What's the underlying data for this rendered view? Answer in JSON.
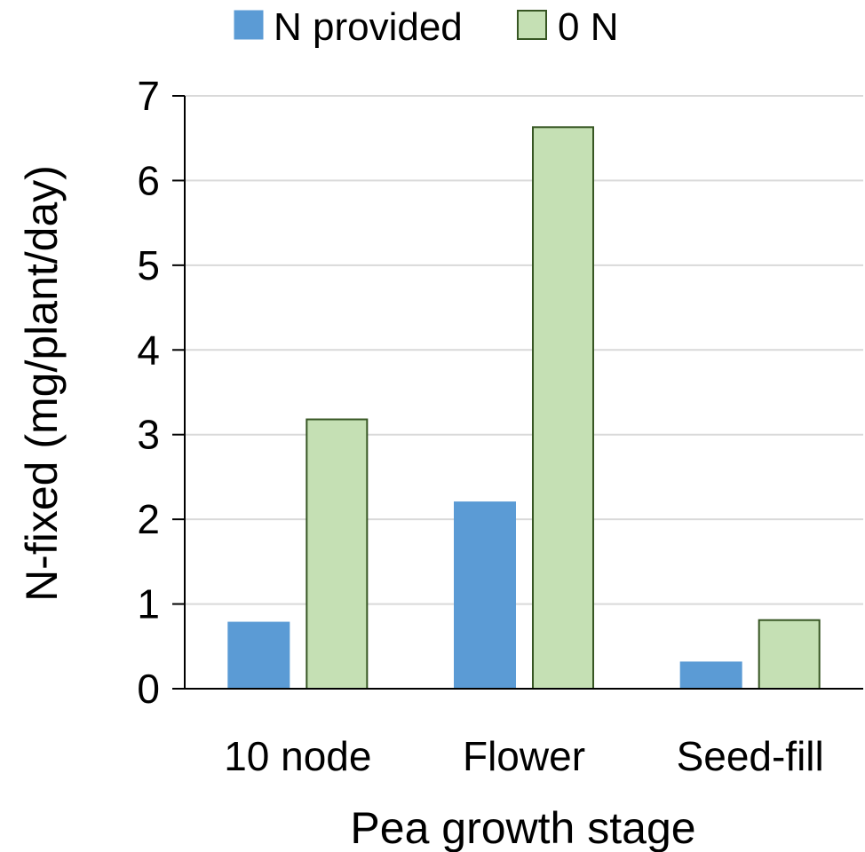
{
  "chart_data": {
    "type": "bar",
    "categories": [
      "10 node",
      "Flower",
      "Seed-fill"
    ],
    "series": [
      {
        "name": "N provided",
        "values": [
          0.78,
          2.2,
          0.31
        ],
        "color": "#5B9BD5",
        "border": "#5B9BD5"
      },
      {
        "name": "0 N",
        "values": [
          3.18,
          6.63,
          0.81
        ],
        "color": "#C5E0B4",
        "border": "#375623"
      }
    ],
    "xlabel": "Pea growth stage",
    "ylabel": "N-fixed (mg/plant/day)",
    "ylim": [
      0,
      7
    ],
    "yticks": [
      "0",
      "1",
      "2",
      "3",
      "4",
      "5",
      "6",
      "7"
    ],
    "grid": true,
    "gridColor": "#D9D9D9",
    "legend_position": "top-center"
  }
}
